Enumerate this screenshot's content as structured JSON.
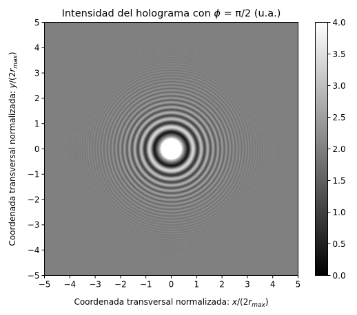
{
  "chart_data": {
    "type": "heatmap",
    "title": "Intensidad del holograma con ϕ = π/2 (u.a.)",
    "title_parts": {
      "pre": "Intensidad del holograma con ",
      "phi": "ϕ",
      "eq": " = π/2 (u.a.)"
    },
    "xlabel": "Coordenada transversal normalizada: x/(2r_max)",
    "xlabel_parts": {
      "pre": "Coordenada transversal normalizada: ",
      "x": "x",
      "mid": "/(2",
      "r": "r",
      "sub": "max",
      "post": ")"
    },
    "ylabel": "Coordenada transversal normalizada: y/(2r_max)",
    "ylabel_parts": {
      "pre": "Coordenada transversal normalizada: ",
      "y": "y",
      "mid": "/(2",
      "r": "r",
      "sub": "max",
      "post": ")"
    },
    "xlim": [
      -5,
      5
    ],
    "ylim": [
      -5,
      5
    ],
    "x_ticks": [
      "−5",
      "−4",
      "−3",
      "−2",
      "−1",
      "0",
      "1",
      "2",
      "3",
      "4",
      "5"
    ],
    "y_ticks": [
      "−5",
      "−4",
      "−3",
      "−2",
      "−1",
      "0",
      "1",
      "2",
      "3",
      "4",
      "5"
    ],
    "x_tick_values": [
      -5,
      -4,
      -3,
      -2,
      -1,
      0,
      1,
      2,
      3,
      4,
      5
    ],
    "y_tick_values": [
      -5,
      -4,
      -3,
      -2,
      -1,
      0,
      1,
      2,
      3,
      4,
      5
    ],
    "colorbar": {
      "range": [
        0.0,
        4.0
      ],
      "cmap": "gray",
      "ticks": [
        "0.0",
        "0.5",
        "1.0",
        "1.5",
        "2.0",
        "2.5",
        "3.0",
        "3.5",
        "4.0"
      ],
      "tick_values": [
        0,
        0.5,
        1.0,
        1.5,
        2.0,
        2.5,
        3.0,
        3.5,
        4.0
      ]
    },
    "grid": false,
    "pattern": {
      "background_intensity": 2.0,
      "center": [
        0,
        0
      ],
      "central_spot_radius": 0.4,
      "central_spot_intensity": 4.0,
      "first_dark_ring_radius": 0.65,
      "rings_visible_to_radius": 4.5
    }
  }
}
